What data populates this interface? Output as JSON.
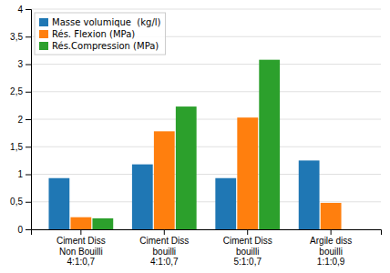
{
  "chart_data": {
    "type": "bar",
    "categories": [
      "Ciment Diss\nNon Bouilli\n4:1:0,7",
      "Ciment Diss\nbouilli\n4:1:0,7",
      "Ciment Diss\nbouilli\n5:1:0,7",
      "Argile diss\nbouilli\n1:1:0,9"
    ],
    "series": [
      {
        "name": "Masse volumique  (kg/l)",
        "values": [
          0.93,
          1.18,
          0.93,
          1.25
        ]
      },
      {
        "name": "Rés. Flexion (MPa)",
        "values": [
          0.22,
          1.78,
          2.03,
          0.48
        ]
      },
      {
        "name": "Rés.Compression (MPa)",
        "values": [
          0.2,
          2.23,
          3.08,
          0.0
        ]
      }
    ],
    "ylim": [
      0,
      4
    ],
    "yticks": [
      0,
      {
        "value": 0.5,
        "label": "0,5"
      },
      1,
      {
        "value": 1.5,
        "label": "1,5"
      },
      2,
      {
        "value": 2.5,
        "label": "2,5"
      },
      3,
      {
        "value": 3.5,
        "label": "3,5"
      },
      4
    ],
    "grid": true,
    "legend": "top-left"
  }
}
